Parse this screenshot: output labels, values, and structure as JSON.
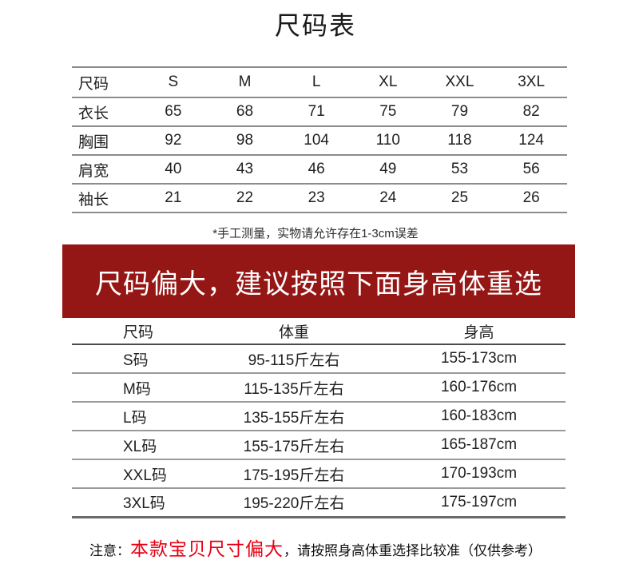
{
  "page": {
    "title": "尺码表"
  },
  "size_table": {
    "header": [
      "尺码",
      "S",
      "M",
      "L",
      "XL",
      "XXL",
      "3XL"
    ],
    "rows": [
      {
        "label": "衣长",
        "values": [
          "65",
          "68",
          "71",
          "75",
          "79",
          "82"
        ]
      },
      {
        "label": "胸围",
        "values": [
          "92",
          "98",
          "104",
          "110",
          "118",
          "124"
        ]
      },
      {
        "label": "肩宽",
        "values": [
          "40",
          "43",
          "46",
          "49",
          "53",
          "56"
        ]
      },
      {
        "label": "袖长",
        "values": [
          "21",
          "22",
          "23",
          "24",
          "25",
          "26"
        ]
      }
    ],
    "note": "*手工测量，实物请允许存在1-3cm误差"
  },
  "banner": {
    "text": "尺码偏大，建议按照下面身高体重选",
    "bg": "#951715",
    "color": "#ffffff"
  },
  "fit_table": {
    "header": [
      "尺码",
      "体重",
      "身高"
    ],
    "rows": [
      {
        "size": "S码",
        "weight": "95-115斤左右",
        "height": "155-173cm"
      },
      {
        "size": "M码",
        "weight": "115-135斤左右",
        "height": "160-176cm"
      },
      {
        "size": "L码",
        "weight": "135-155斤左右",
        "height": "160-183cm"
      },
      {
        "size": "XL码",
        "weight": "155-175斤左右",
        "height": "165-187cm"
      },
      {
        "size": "XXL码",
        "weight": "175-195斤左右",
        "height": "170-193cm"
      },
      {
        "size": "3XL码",
        "weight": "195-220斤左右",
        "height": "175-197cm"
      }
    ]
  },
  "footer_note": {
    "prefix": "注意：",
    "highlight": "本款宝贝尺寸偏大",
    "suffix": "，请按照身高体重选择比较准（仅供参考）",
    "highlight_color": "#e60012"
  }
}
